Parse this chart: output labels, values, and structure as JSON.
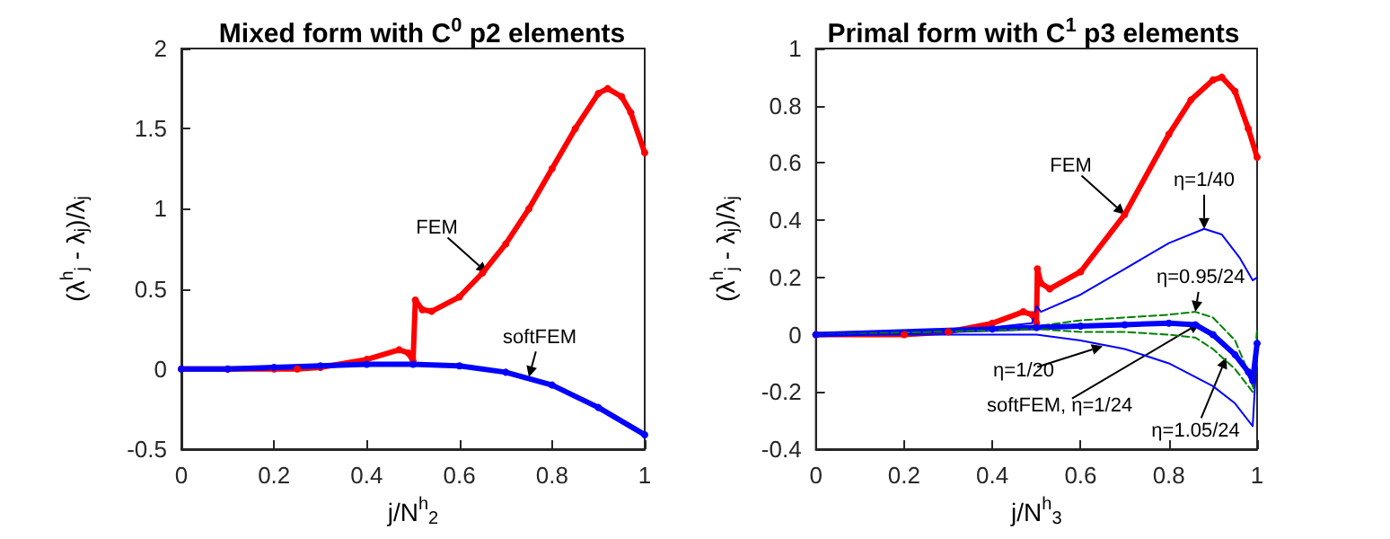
{
  "chart_data": [
    {
      "type": "line",
      "title": "Mixed form with C$^{0}$ p2 elements",
      "xlabel": "j/N$^{h}$$_{2}$",
      "ylabel": "(λ$^{h}$$_{j}$ - λ$_{j}$)/λ$_{j}$",
      "xlim": [
        0,
        1
      ],
      "xticks": [
        0,
        0.2,
        0.4,
        0.6,
        0.8,
        1
      ],
      "ylim": [
        -0.5,
        2
      ],
      "yticks": [
        -0.5,
        0,
        0.5,
        1,
        1.5,
        2
      ],
      "grid": false,
      "series": [
        {
          "color": "#ff0000",
          "marker": "circle",
          "x": [
            0,
            0.1,
            0.2,
            0.25,
            0.3,
            0.4,
            0.47,
            0.49,
            0.5,
            0.505,
            0.52,
            0.54,
            0.6,
            0.65,
            0.7,
            0.75,
            0.8,
            0.85,
            0.9,
            0.92,
            0.95,
            0.97,
            1
          ],
          "values": [
            0,
            0,
            0,
            0,
            0.01,
            0.06,
            0.12,
            0.1,
            0.05,
            0.43,
            0.37,
            0.36,
            0.45,
            0.6,
            0.78,
            1.0,
            1.25,
            1.5,
            1.72,
            1.75,
            1.7,
            1.6,
            1.35
          ]
        },
        {
          "color": "#0000ff",
          "marker": "circle",
          "x": [
            0,
            0.1,
            0.2,
            0.3,
            0.4,
            0.5,
            0.6,
            0.7,
            0.8,
            0.9,
            1
          ],
          "values": [
            0,
            0,
            0.01,
            0.02,
            0.03,
            0.03,
            0.02,
            -0.02,
            -0.1,
            -0.24,
            -0.41
          ]
        }
      ],
      "annotations": [
        {
          "text": "FEM",
          "x": 0.66,
          "y": 0.6
        },
        {
          "text": "softFEM",
          "x": 0.75,
          "y": -0.05
        }
      ]
    },
    {
      "type": "line",
      "title": "Primal form with C$^{1}$ p3 elements",
      "xlabel": "j/N$^{h}$$_{3}$",
      "ylabel": "(λ$^{h}$$_{j}$ - λ$_{j}$)/λ$_{j}$",
      "xlim": [
        0,
        1
      ],
      "xticks": [
        0,
        0.2,
        0.4,
        0.6,
        0.8,
        1
      ],
      "ylim": [
        -0.4,
        1
      ],
      "yticks": [
        -0.4,
        -0.2,
        0,
        0.2,
        0.4,
        0.6,
        0.8,
        1
      ],
      "grid": false,
      "series": [
        {
          "color": "#ff0000",
          "marker": "circle",
          "x": [
            0,
            0.2,
            0.3,
            0.4,
            0.47,
            0.49,
            0.5,
            0.502,
            0.51,
            0.53,
            0.6,
            0.7,
            0.8,
            0.85,
            0.9,
            0.92,
            0.95,
            0.98,
            1
          ],
          "values": [
            0,
            0,
            0.01,
            0.04,
            0.08,
            0.07,
            0.04,
            0.23,
            0.18,
            0.16,
            0.22,
            0.42,
            0.7,
            0.82,
            0.89,
            0.9,
            0.85,
            0.72,
            0.62
          ]
        },
        {
          "color": "#0000ff",
          "marker": "none",
          "x": [
            0,
            0.3,
            0.49,
            0.5,
            0.51,
            0.6,
            0.7,
            0.8,
            0.88,
            0.92,
            0.96,
            0.99,
            1
          ],
          "values": [
            0,
            0.01,
            0.04,
            0.1,
            0.08,
            0.14,
            0.23,
            0.32,
            0.37,
            0.35,
            0.27,
            0.19,
            0.2
          ]
        },
        {
          "color": "#008000",
          "marker": "none",
          "line_style": "dashed",
          "x": [
            0,
            0.4,
            0.5,
            0.6,
            0.7,
            0.8,
            0.86,
            0.9,
            0.95,
            0.98,
            0.99,
            1
          ],
          "values": [
            0,
            0.02,
            0.03,
            0.05,
            0.06,
            0.07,
            0.08,
            0.06,
            -0.02,
            -0.13,
            -0.18,
            0.02
          ]
        },
        {
          "color": "#0000ff",
          "marker": "circle",
          "x": [
            0,
            0.4,
            0.5,
            0.6,
            0.7,
            0.8,
            0.86,
            0.9,
            0.95,
            0.98,
            0.99,
            1
          ],
          "values": [
            0,
            0.02,
            0.025,
            0.03,
            0.035,
            0.04,
            0.035,
            0,
            -0.07,
            -0.13,
            -0.16,
            -0.03
          ]
        },
        {
          "color": "#008000",
          "marker": "none",
          "line_style": "dashed",
          "x": [
            0,
            0.4,
            0.5,
            0.6,
            0.7,
            0.8,
            0.86,
            0.9,
            0.95,
            0.98,
            0.99,
            1
          ],
          "values": [
            0,
            0.015,
            0.02,
            0.01,
            0.01,
            0,
            -0.01,
            -0.05,
            -0.12,
            -0.18,
            -0.2,
            -0.1
          ]
        },
        {
          "color": "#0000ff",
          "marker": "none",
          "x": [
            0,
            0.3,
            0.5,
            0.6,
            0.7,
            0.8,
            0.9,
            0.95,
            0.99,
            1
          ],
          "values": [
            0,
            0,
            0,
            -0.02,
            -0.05,
            -0.1,
            -0.18,
            -0.24,
            -0.32,
            -0.05
          ]
        }
      ],
      "annotations": [
        {
          "text": "FEM",
          "x": 0.7,
          "y": 0.42
        },
        {
          "text": "η=1/40",
          "x": 0.88,
          "y": 0.37
        },
        {
          "text": "η=0.95/24",
          "x": 0.86,
          "y": 0.08
        },
        {
          "text": "η=1/20",
          "x": 0.65,
          "y": -0.04
        },
        {
          "text": "softFEM, η=1/24",
          "x": 0.87,
          "y": 0.04
        },
        {
          "text": "η=1.05/24",
          "x": 0.93,
          "y": -0.08
        }
      ]
    }
  ]
}
